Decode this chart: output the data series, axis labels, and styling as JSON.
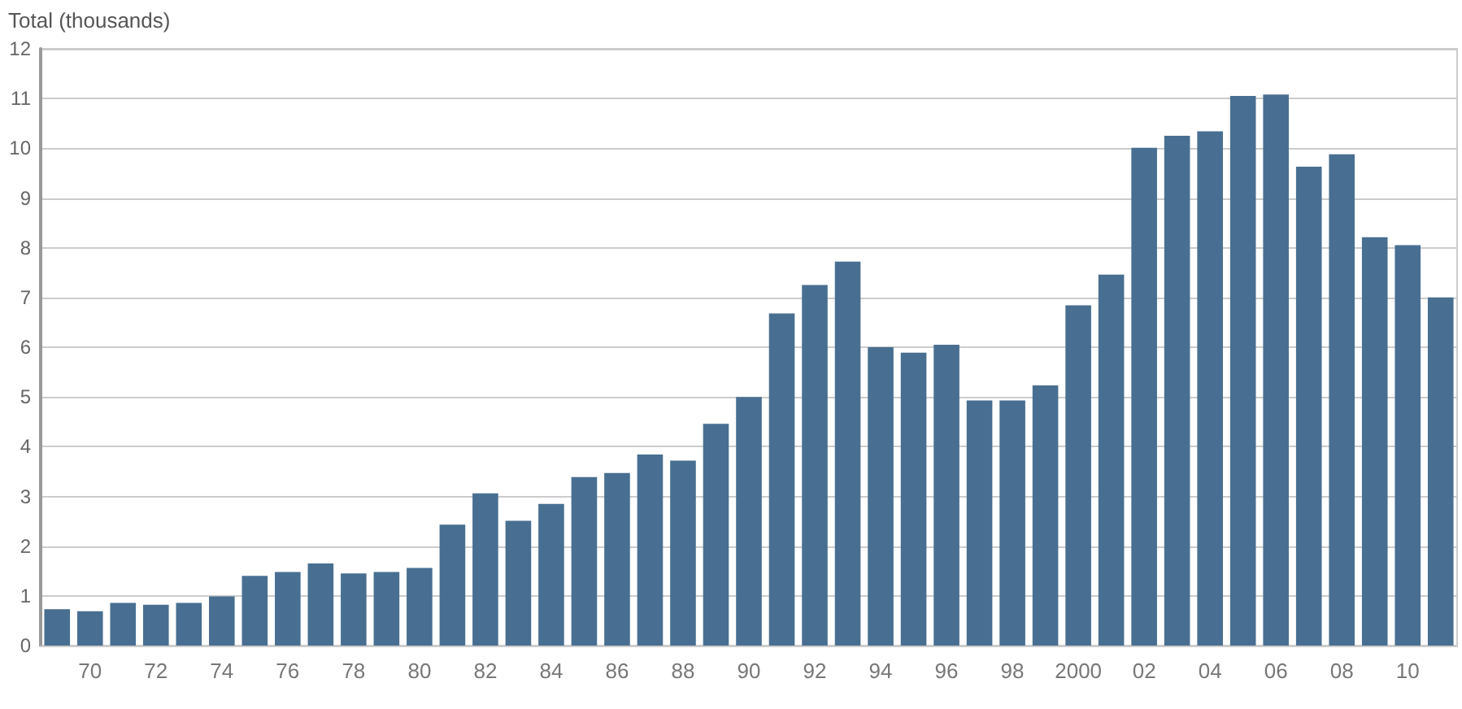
{
  "chart_data": {
    "type": "bar",
    "ylabel": "Total (thousands)",
    "categories": [
      null,
      "70",
      null,
      "72",
      null,
      "74",
      null,
      "76",
      null,
      "78",
      null,
      "80",
      null,
      "82",
      null,
      "84",
      null,
      "86",
      null,
      "88",
      null,
      "90",
      null,
      "92",
      null,
      "94",
      null,
      "96",
      null,
      "98",
      null,
      "2000",
      null,
      "02",
      null,
      "04",
      null,
      "06",
      null,
      "08",
      null,
      "10",
      null
    ],
    "values": [
      0.73,
      0.69,
      0.86,
      0.82,
      0.86,
      0.99,
      1.4,
      1.48,
      1.65,
      1.45,
      1.48,
      1.56,
      2.43,
      3.06,
      2.51,
      2.85,
      3.39,
      3.47,
      3.84,
      3.72,
      4.46,
      5.0,
      6.68,
      7.25,
      7.72,
      6.0,
      5.89,
      6.05,
      4.93,
      4.93,
      5.23,
      6.84,
      7.46,
      10.01,
      10.25,
      10.34,
      11.05,
      11.08,
      9.63,
      9.88,
      8.21,
      8.05,
      7.0
    ],
    "color": "#486f91",
    "ylim": [
      0,
      12
    ],
    "yticks": [
      0,
      1,
      2,
      3,
      4,
      5,
      6,
      7,
      8,
      9,
      10,
      11,
      12
    ],
    "grid": "y"
  }
}
